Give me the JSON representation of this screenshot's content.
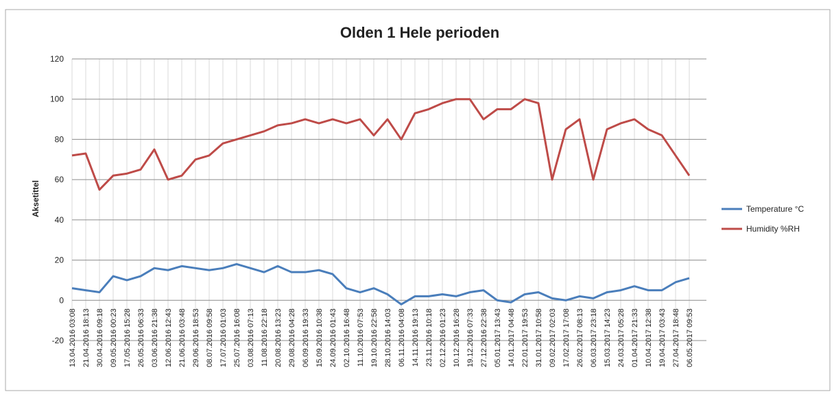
{
  "chart_data": {
    "type": "line",
    "title": "Olden 1 Hele perioden",
    "y_label": "Aksetittel",
    "categories": [
      "13.04.2016 03:08",
      "21.04.2016 18:13",
      "30.04.2016 09:18",
      "09.05.2016 00:23",
      "17.05.2016 15:28",
      "26.05.2016 06:33",
      "03.06.2016 21:38",
      "12.06.2016 12:43",
      "21.06.2016 03:48",
      "29.06.2016 18:53",
      "08.07.2016 09:58",
      "17.07.2016 01:03",
      "25.07.2016 16:08",
      "03.08.2016 07:13",
      "11.08.2016 22:18",
      "20.08.2016 13:23",
      "29.08.2016 04:28",
      "06.09.2016 19:33",
      "15.09.2016 10:38",
      "24.09.2016 01:43",
      "02.10.2016 16:48",
      "11.10.2016 07:53",
      "19.10.2016 22:58",
      "28.10.2016 14:03",
      "06.11.2016 04:08",
      "14.11.2016 19:13",
      "23.11.2016 10:18",
      "02.12.2016 01:23",
      "10.12.2016 16:28",
      "19.12.2016 07:33",
      "27.12.2016 22:38",
      "05.01.2017 13:43",
      "14.01.2017 04:48",
      "22.01.2017 19:53",
      "31.01.2017 10:58",
      "09.02.2017 02:03",
      "17.02.2017 17:08",
      "26.02.2017 08:13",
      "06.03.2017 23:18",
      "15.03.2017 14:23",
      "24.03.2017 05:28",
      "01.04.2017 21:33",
      "10.04.2017 12:38",
      "19.04.2017 03:43",
      "27.04.2017 18:48",
      "06.05.2017 09:53"
    ],
    "series": [
      {
        "name": "Temperature °C",
        "color": "#4a7ebb",
        "values": [
          6,
          5,
          4,
          12,
          10,
          12,
          16,
          15,
          17,
          16,
          15,
          16,
          18,
          16,
          14,
          17,
          14,
          14,
          15,
          13,
          6,
          4,
          6,
          3,
          -2,
          2,
          2,
          3,
          2,
          4,
          5,
          0,
          -1,
          3,
          4,
          1,
          0,
          2,
          1,
          4,
          5,
          7,
          5,
          5,
          9,
          11
        ]
      },
      {
        "name": "Humidity %RH",
        "color": "#be4b48",
        "values": [
          72,
          73,
          55,
          62,
          63,
          65,
          75,
          60,
          62,
          70,
          72,
          78,
          80,
          82,
          84,
          87,
          88,
          90,
          88,
          90,
          88,
          90,
          82,
          90,
          80,
          93,
          95,
          98,
          100,
          100,
          90,
          95,
          95,
          100,
          98,
          60,
          85,
          90,
          60,
          85,
          88,
          90,
          85,
          82,
          72,
          62
        ]
      }
    ],
    "ylim": [
      -20,
      120
    ],
    "yticks": [
      -20,
      0,
      20,
      40,
      60,
      80,
      100,
      120
    ],
    "grid": true,
    "legend": "right"
  }
}
